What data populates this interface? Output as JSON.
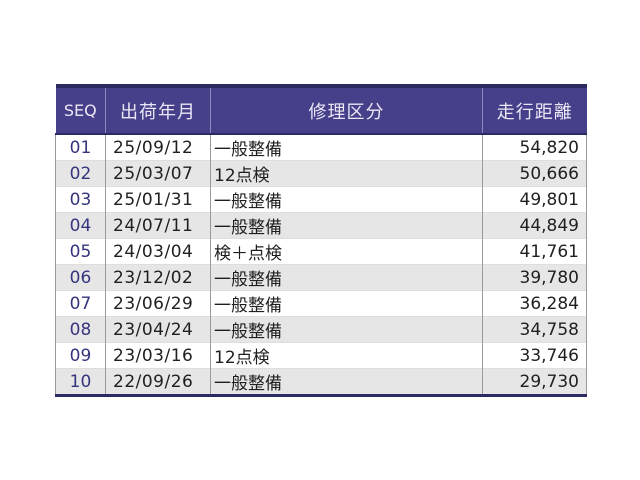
{
  "page": {
    "background_color": "#ffffff"
  },
  "table": {
    "colors": {
      "header_background": "#46408a",
      "header_text": "#e9e7f5",
      "frame_dark": "#2c2a62",
      "row_background": "#ffffff",
      "row_alt_background": "#e6e6e6",
      "grid_vertical": "#9a9a9a",
      "grid_horizontal": "#dedede",
      "seq_text": "#35357e",
      "body_text": "#1f1f1f"
    },
    "columns": [
      {
        "key": "seq",
        "label": "SEQ",
        "align": "center"
      },
      {
        "key": "ship_date",
        "label": "出荷年月",
        "align": "left"
      },
      {
        "key": "repair_type",
        "label": "修理区分",
        "align": "left"
      },
      {
        "key": "mileage",
        "label": "走行距離",
        "align": "right"
      }
    ],
    "rows": [
      {
        "seq": "01",
        "ship_date": "25/09/12",
        "repair_type": "一般整備",
        "mileage": "54,820"
      },
      {
        "seq": "02",
        "ship_date": "25/03/07",
        "repair_type": "12点検",
        "mileage": "50,666"
      },
      {
        "seq": "03",
        "ship_date": "25/01/31",
        "repair_type": "一般整備",
        "mileage": "49,801"
      },
      {
        "seq": "04",
        "ship_date": "24/07/11",
        "repair_type": "一般整備",
        "mileage": "44,849"
      },
      {
        "seq": "05",
        "ship_date": "24/03/04",
        "repair_type": "検＋点検",
        "mileage": "41,761"
      },
      {
        "seq": "06",
        "ship_date": "23/12/02",
        "repair_type": "一般整備",
        "mileage": "39,780"
      },
      {
        "seq": "07",
        "ship_date": "23/06/29",
        "repair_type": "一般整備",
        "mileage": "36,284"
      },
      {
        "seq": "08",
        "ship_date": "23/04/24",
        "repair_type": "一般整備",
        "mileage": "34,758"
      },
      {
        "seq": "09",
        "ship_date": "23/03/16",
        "repair_type": "12点検",
        "mileage": "33,746"
      },
      {
        "seq": "10",
        "ship_date": "22/09/26",
        "repair_type": "一般整備",
        "mileage": "29,730"
      }
    ]
  }
}
